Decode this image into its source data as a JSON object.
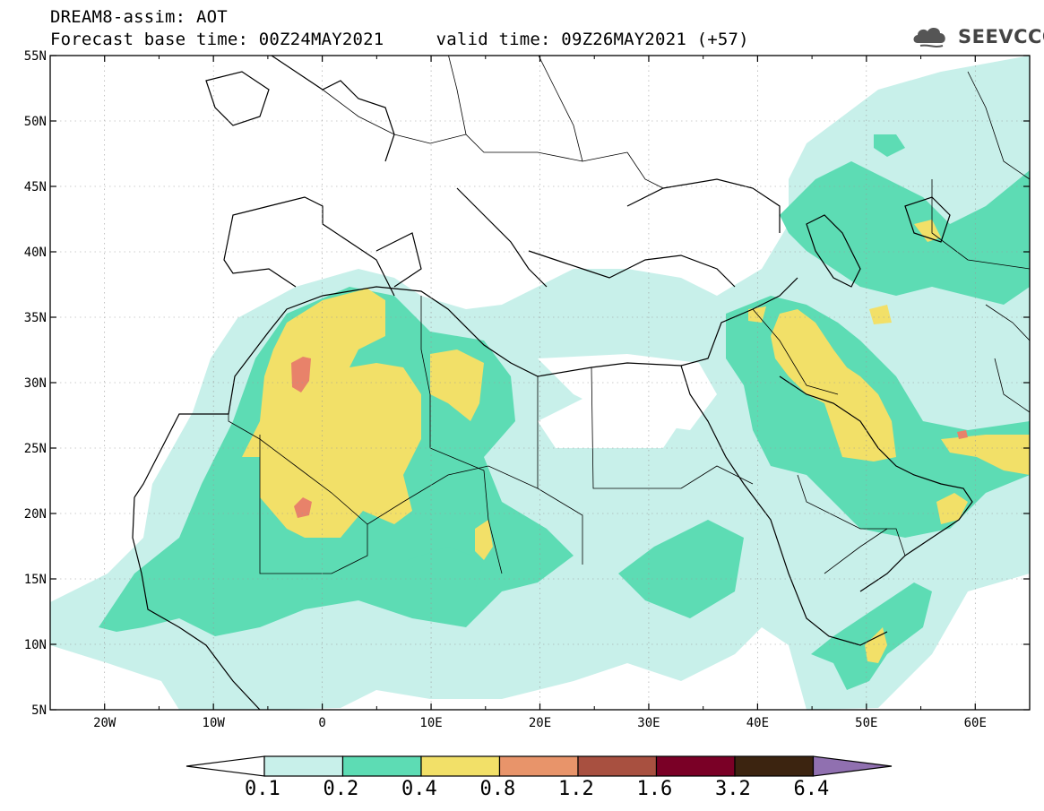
{
  "title": {
    "line1": "DREAM8-assim: AOT",
    "line2": "Forecast base time: 00Z24MAY2021     valid time: 09Z26MAY2021 (+57)"
  },
  "logo": {
    "text": "SEEVCCC",
    "icon": "cloud-icon"
  },
  "map": {
    "lon_range": [
      -25,
      65
    ],
    "lat_range": [
      5,
      55
    ],
    "lat_labels": [
      "55N",
      "50N",
      "45N",
      "40N",
      "35N",
      "30N",
      "25N",
      "20N",
      "15N",
      "10N",
      "5N"
    ],
    "lon_labels": [
      "20W",
      "10W",
      "0",
      "10E",
      "20E",
      "30E",
      "40E",
      "50E",
      "60E"
    ]
  },
  "colorbar": {
    "levels": [
      "0.1",
      "0.2",
      "0.4",
      "0.8",
      "1.2",
      "1.6",
      "3.2",
      "6.4"
    ],
    "colors": [
      "#ffffff",
      "#c8f0ea",
      "#5ddcb4",
      "#f2e068",
      "#e8946a",
      "#a85040",
      "#7a0026",
      "#3c2410",
      "#9070b0"
    ]
  },
  "palette": {
    "light": "#c8f0ea",
    "mid": "#5ddcb4",
    "yellow": "#f2e068",
    "orange": "#e8826a"
  }
}
